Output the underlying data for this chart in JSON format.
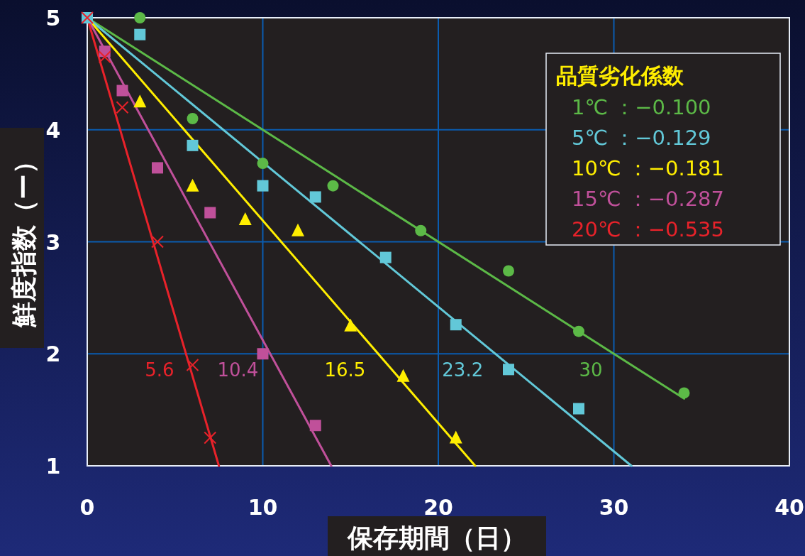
{
  "chart_data": {
    "type": "scatter",
    "xlabel": "保存期間（日）",
    "ylabel": "鮮度指数（ー）",
    "legend_title": "品質劣化係数",
    "legend": "top right",
    "grid": true,
    "xlim": [
      0,
      40
    ],
    "xticks": [
      0,
      10,
      20,
      30,
      40
    ],
    "ylim": [
      1,
      5
    ],
    "yticks": [
      1,
      2,
      3,
      4,
      5
    ],
    "series": [
      {
        "type": "scatter",
        "marker": "circle",
        "color": "#5cb947",
        "x": [
          3,
          6,
          10,
          14,
          19,
          24,
          28,
          34
        ],
        "values": [
          5.0,
          4.1,
          3.7,
          3.5,
          3.1,
          2.74,
          2.2,
          1.65
        ]
      },
      {
        "type": "scatter",
        "marker": "square",
        "color": "#62c8d8",
        "x": [
          0,
          3,
          6,
          10,
          13,
          17,
          21,
          24,
          28
        ],
        "values": [
          5,
          4.85,
          3.86,
          3.5,
          3.4,
          2.86,
          2.26,
          1.86,
          1.51
        ]
      },
      {
        "type": "scatter",
        "marker": "triangle",
        "color": "#ffee00",
        "x": [
          3,
          6,
          9,
          12,
          15,
          18,
          21
        ],
        "values": [
          4.25,
          3.5,
          3.2,
          3.1,
          2.25,
          1.8,
          1.25
        ]
      },
      {
        "type": "scatter",
        "marker": "square",
        "color": "#c0509a",
        "x": [
          1,
          2,
          4,
          7,
          10,
          13
        ],
        "values": [
          4.7,
          4.35,
          3.66,
          3.26,
          2.0,
          1.36
        ]
      },
      {
        "type": "scatter",
        "marker": "cross",
        "color": "#e8222a",
        "x": [
          0,
          1,
          2,
          4,
          6,
          7
        ],
        "values": [
          5,
          4.65,
          4.2,
          3.0,
          1.9,
          1.25
        ]
      },
      {
        "type": "line",
        "name": "1℃ ：−0.100",
        "color": "#5cb947",
        "x": [
          0,
          34
        ],
        "values": [
          5,
          1.6
        ]
      },
      {
        "type": "line",
        "name": "5℃ ：−0.129",
        "color": "#62c8d8",
        "x": [
          0,
          31
        ],
        "values": [
          5,
          1
        ]
      },
      {
        "type": "line",
        "name": "10℃ ：−0.181",
        "color": "#ffee00",
        "x": [
          0,
          22.1
        ],
        "values": [
          5,
          1
        ]
      },
      {
        "type": "line",
        "name": "15℃ ：−0.287",
        "color": "#c0509a",
        "x": [
          0,
          13.9
        ],
        "values": [
          5,
          1
        ]
      },
      {
        "type": "line",
        "name": "20℃ ：−0.535",
        "color": "#e8222a",
        "x": [
          0,
          7.5
        ],
        "values": [
          5,
          1
        ]
      }
    ],
    "annotations": [
      {
        "text": "5.6",
        "x": 5.6,
        "y": 2
      },
      {
        "text": "10.4",
        "x": 10.4,
        "y": 2
      },
      {
        "text": "16.5",
        "x": 16.5,
        "y": 2
      },
      {
        "text": "23.2",
        "x": 23.2,
        "y": 2
      },
      {
        "text": "30",
        "x": 30,
        "y": 2
      }
    ]
  }
}
